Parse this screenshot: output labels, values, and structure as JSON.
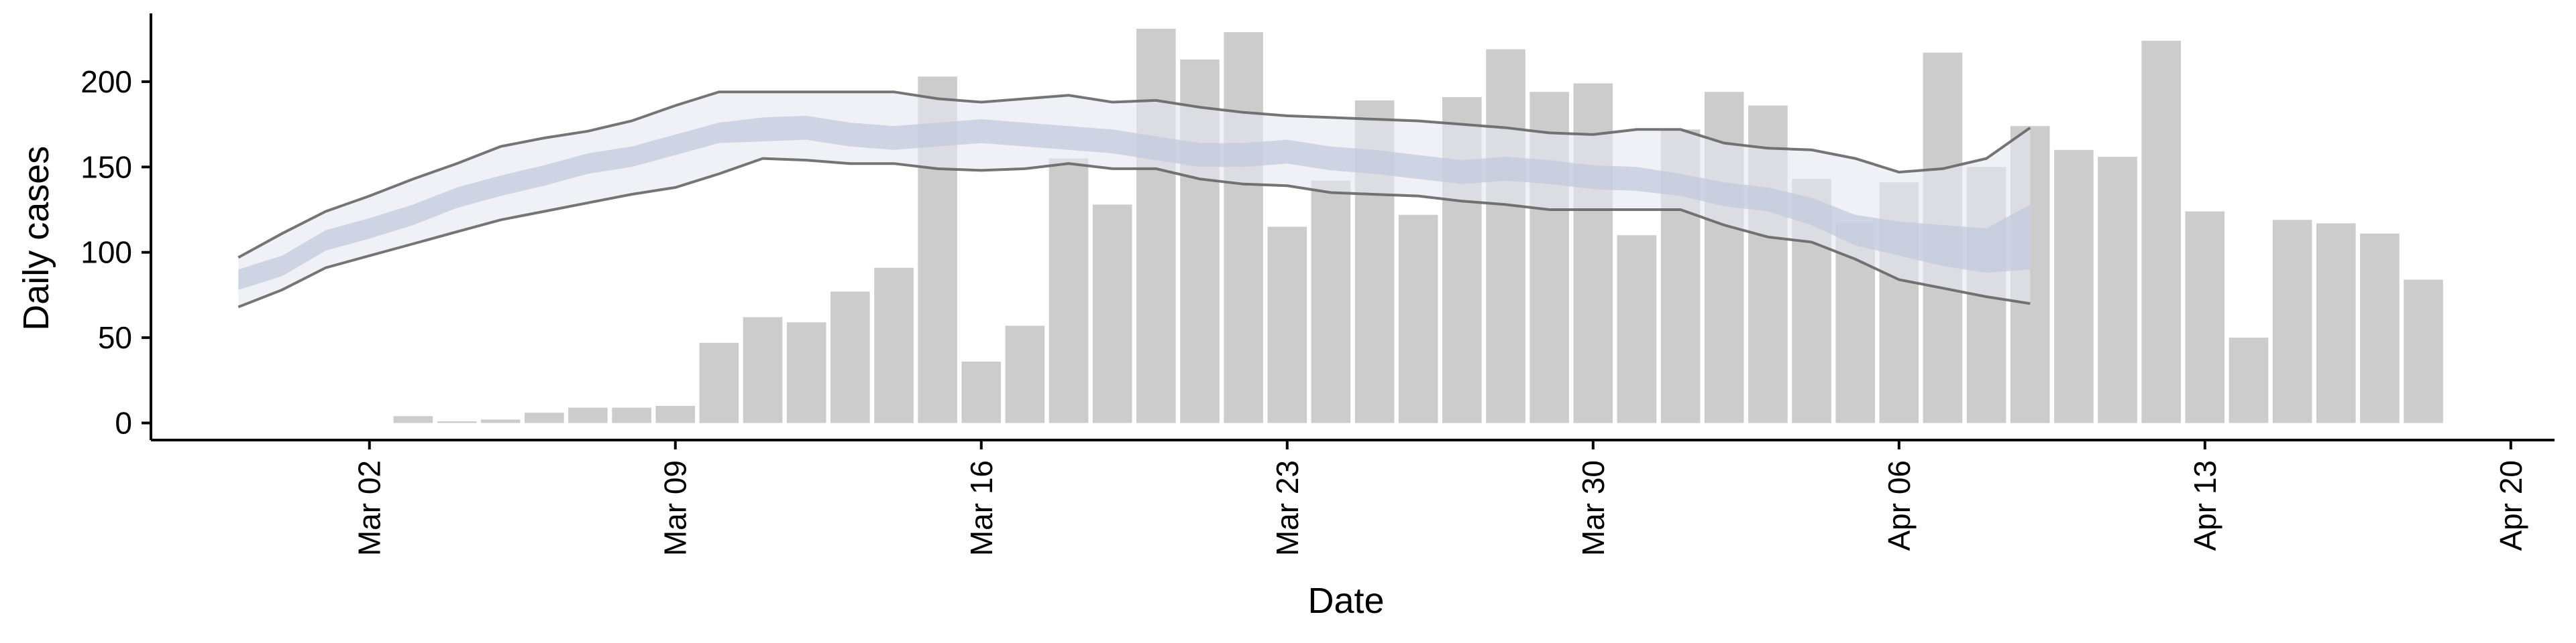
{
  "chart_data": {
    "type": "bar",
    "xlabel": "Date",
    "ylabel": "Daily cases",
    "ylim": [
      -10,
      240
    ],
    "x_range": [
      "2020-02-26",
      "2020-04-21"
    ],
    "y_ticks": [
      0,
      50,
      100,
      150,
      200
    ],
    "x_ticks": [
      {
        "date": "2020-03-02",
        "label": "Mar 02"
      },
      {
        "date": "2020-03-09",
        "label": "Mar 09"
      },
      {
        "date": "2020-03-16",
        "label": "Mar 16"
      },
      {
        "date": "2020-03-23",
        "label": "Mar 23"
      },
      {
        "date": "2020-03-30",
        "label": "Mar 30"
      },
      {
        "date": "2020-04-06",
        "label": "Apr 06"
      },
      {
        "date": "2020-04-13",
        "label": "Apr 13"
      },
      {
        "date": "2020-04-20",
        "label": "Apr 20"
      }
    ],
    "grid": false,
    "legend": "none",
    "series": [
      {
        "kind": "bars",
        "color": "#cccccc",
        "points": [
          {
            "date": "2020-03-03",
            "value": 4
          },
          {
            "date": "2020-03-04",
            "value": 1
          },
          {
            "date": "2020-03-05",
            "value": 2
          },
          {
            "date": "2020-03-06",
            "value": 6
          },
          {
            "date": "2020-03-07",
            "value": 9
          },
          {
            "date": "2020-03-08",
            "value": 9
          },
          {
            "date": "2020-03-09",
            "value": 10
          },
          {
            "date": "2020-03-10",
            "value": 47
          },
          {
            "date": "2020-03-11",
            "value": 62
          },
          {
            "date": "2020-03-12",
            "value": 59
          },
          {
            "date": "2020-03-13",
            "value": 77
          },
          {
            "date": "2020-03-14",
            "value": 91
          },
          {
            "date": "2020-03-15",
            "value": 203
          },
          {
            "date": "2020-03-16",
            "value": 36
          },
          {
            "date": "2020-03-17",
            "value": 57
          },
          {
            "date": "2020-03-18",
            "value": 155
          },
          {
            "date": "2020-03-19",
            "value": 128
          },
          {
            "date": "2020-03-20",
            "value": 231
          },
          {
            "date": "2020-03-21",
            "value": 213
          },
          {
            "date": "2020-03-22",
            "value": 229
          },
          {
            "date": "2020-03-23",
            "value": 115
          },
          {
            "date": "2020-03-24",
            "value": 142
          },
          {
            "date": "2020-03-25",
            "value": 189
          },
          {
            "date": "2020-03-26",
            "value": 122
          },
          {
            "date": "2020-03-27",
            "value": 191
          },
          {
            "date": "2020-03-28",
            "value": 219
          },
          {
            "date": "2020-03-29",
            "value": 194
          },
          {
            "date": "2020-03-30",
            "value": 199
          },
          {
            "date": "2020-03-31",
            "value": 110
          },
          {
            "date": "2020-04-01",
            "value": 172
          },
          {
            "date": "2020-04-02",
            "value": 194
          },
          {
            "date": "2020-04-03",
            "value": 186
          },
          {
            "date": "2020-04-04",
            "value": 143
          },
          {
            "date": "2020-04-05",
            "value": 117
          },
          {
            "date": "2020-04-06",
            "value": 141
          },
          {
            "date": "2020-04-07",
            "value": 217
          },
          {
            "date": "2020-04-08",
            "value": 150
          },
          {
            "date": "2020-04-09",
            "value": 174
          },
          {
            "date": "2020-04-10",
            "value": 160
          },
          {
            "date": "2020-04-11",
            "value": 156
          },
          {
            "date": "2020-04-12",
            "value": 224
          },
          {
            "date": "2020-04-13",
            "value": 124
          },
          {
            "date": "2020-04-14",
            "value": 50
          },
          {
            "date": "2020-04-15",
            "value": 119
          },
          {
            "date": "2020-04-16",
            "value": 117
          },
          {
            "date": "2020-04-17",
            "value": 111
          },
          {
            "date": "2020-04-18",
            "value": 84
          }
        ]
      },
      {
        "kind": "band-outer",
        "color": "#e6e8f1",
        "line_color": "#666666",
        "points": [
          {
            "date": "2020-02-28",
            "lower": 68,
            "upper": 97
          },
          {
            "date": "2020-02-29",
            "lower": 78,
            "upper": 111
          },
          {
            "date": "2020-03-01",
            "lower": 91,
            "upper": 124
          },
          {
            "date": "2020-03-02",
            "lower": 98,
            "upper": 133
          },
          {
            "date": "2020-03-03",
            "lower": 105,
            "upper": 143
          },
          {
            "date": "2020-03-04",
            "lower": 112,
            "upper": 152
          },
          {
            "date": "2020-03-05",
            "lower": 119,
            "upper": 162
          },
          {
            "date": "2020-03-06",
            "lower": 124,
            "upper": 167
          },
          {
            "date": "2020-03-07",
            "lower": 129,
            "upper": 171
          },
          {
            "date": "2020-03-08",
            "lower": 134,
            "upper": 177
          },
          {
            "date": "2020-03-09",
            "lower": 138,
            "upper": 186
          },
          {
            "date": "2020-03-10",
            "lower": 146,
            "upper": 194
          },
          {
            "date": "2020-03-11",
            "lower": 155,
            "upper": 194
          },
          {
            "date": "2020-03-12",
            "lower": 154,
            "upper": 194
          },
          {
            "date": "2020-03-13",
            "lower": 152,
            "upper": 194
          },
          {
            "date": "2020-03-14",
            "lower": 152,
            "upper": 194
          },
          {
            "date": "2020-03-15",
            "lower": 149,
            "upper": 190
          },
          {
            "date": "2020-03-16",
            "lower": 148,
            "upper": 188
          },
          {
            "date": "2020-03-17",
            "lower": 149,
            "upper": 190
          },
          {
            "date": "2020-03-18",
            "lower": 152,
            "upper": 192
          },
          {
            "date": "2020-03-19",
            "lower": 149,
            "upper": 188
          },
          {
            "date": "2020-03-20",
            "lower": 149,
            "upper": 189
          },
          {
            "date": "2020-03-21",
            "lower": 143,
            "upper": 185
          },
          {
            "date": "2020-03-22",
            "lower": 140,
            "upper": 182
          },
          {
            "date": "2020-03-23",
            "lower": 139,
            "upper": 180
          },
          {
            "date": "2020-03-24",
            "lower": 135,
            "upper": 179
          },
          {
            "date": "2020-03-25",
            "lower": 134,
            "upper": 178
          },
          {
            "date": "2020-03-26",
            "lower": 133,
            "upper": 177
          },
          {
            "date": "2020-03-27",
            "lower": 130,
            "upper": 175
          },
          {
            "date": "2020-03-28",
            "lower": 128,
            "upper": 173
          },
          {
            "date": "2020-03-29",
            "lower": 125,
            "upper": 170
          },
          {
            "date": "2020-03-30",
            "lower": 125,
            "upper": 169
          },
          {
            "date": "2020-03-31",
            "lower": 125,
            "upper": 172
          },
          {
            "date": "2020-04-01",
            "lower": 125,
            "upper": 172
          },
          {
            "date": "2020-04-02",
            "lower": 116,
            "upper": 164
          },
          {
            "date": "2020-04-03",
            "lower": 109,
            "upper": 161
          },
          {
            "date": "2020-04-04",
            "lower": 106,
            "upper": 160
          },
          {
            "date": "2020-04-05",
            "lower": 96,
            "upper": 155
          },
          {
            "date": "2020-04-06",
            "lower": 84,
            "upper": 147
          },
          {
            "date": "2020-04-07",
            "lower": 79,
            "upper": 149
          },
          {
            "date": "2020-04-08",
            "lower": 74,
            "upper": 155
          },
          {
            "date": "2020-04-09",
            "lower": 70,
            "upper": 173
          }
        ]
      },
      {
        "kind": "band-inner",
        "color": "#c3c9dc",
        "points": [
          {
            "date": "2020-02-28",
            "lower": 78,
            "upper": 90
          },
          {
            "date": "2020-02-29",
            "lower": 86,
            "upper": 98
          },
          {
            "date": "2020-03-01",
            "lower": 101,
            "upper": 113
          },
          {
            "date": "2020-03-02",
            "lower": 108,
            "upper": 120
          },
          {
            "date": "2020-03-03",
            "lower": 116,
            "upper": 128
          },
          {
            "date": "2020-03-04",
            "lower": 126,
            "upper": 138
          },
          {
            "date": "2020-03-05",
            "lower": 133,
            "upper": 145
          },
          {
            "date": "2020-03-06",
            "lower": 139,
            "upper": 151
          },
          {
            "date": "2020-03-07",
            "lower": 146,
            "upper": 158
          },
          {
            "date": "2020-03-08",
            "lower": 150,
            "upper": 162
          },
          {
            "date": "2020-03-09",
            "lower": 157,
            "upper": 169
          },
          {
            "date": "2020-03-10",
            "lower": 164,
            "upper": 176
          },
          {
            "date": "2020-03-11",
            "lower": 165,
            "upper": 179
          },
          {
            "date": "2020-03-12",
            "lower": 166,
            "upper": 180
          },
          {
            "date": "2020-03-13",
            "lower": 162,
            "upper": 176
          },
          {
            "date": "2020-03-14",
            "lower": 160,
            "upper": 174
          },
          {
            "date": "2020-03-15",
            "lower": 162,
            "upper": 176
          },
          {
            "date": "2020-03-16",
            "lower": 164,
            "upper": 178
          },
          {
            "date": "2020-03-17",
            "lower": 162,
            "upper": 176
          },
          {
            "date": "2020-03-18",
            "lower": 160,
            "upper": 174
          },
          {
            "date": "2020-03-19",
            "lower": 158,
            "upper": 172
          },
          {
            "date": "2020-03-20",
            "lower": 154,
            "upper": 168
          },
          {
            "date": "2020-03-21",
            "lower": 150,
            "upper": 164
          },
          {
            "date": "2020-03-22",
            "lower": 150,
            "upper": 164
          },
          {
            "date": "2020-03-23",
            "lower": 152,
            "upper": 166
          },
          {
            "date": "2020-03-24",
            "lower": 148,
            "upper": 162
          },
          {
            "date": "2020-03-25",
            "lower": 146,
            "upper": 160
          },
          {
            "date": "2020-03-26",
            "lower": 143,
            "upper": 157
          },
          {
            "date": "2020-03-27",
            "lower": 140,
            "upper": 154
          },
          {
            "date": "2020-03-28",
            "lower": 142,
            "upper": 156
          },
          {
            "date": "2020-03-29",
            "lower": 140,
            "upper": 154
          },
          {
            "date": "2020-03-30",
            "lower": 137,
            "upper": 151
          },
          {
            "date": "2020-03-31",
            "lower": 136,
            "upper": 150
          },
          {
            "date": "2020-04-01",
            "lower": 133,
            "upper": 146
          },
          {
            "date": "2020-04-02",
            "lower": 127,
            "upper": 141
          },
          {
            "date": "2020-04-03",
            "lower": 124,
            "upper": 138
          },
          {
            "date": "2020-04-04",
            "lower": 116,
            "upper": 132
          },
          {
            "date": "2020-04-05",
            "lower": 104,
            "upper": 122
          },
          {
            "date": "2020-04-06",
            "lower": 98,
            "upper": 118
          },
          {
            "date": "2020-04-07",
            "lower": 92,
            "upper": 116
          },
          {
            "date": "2020-04-08",
            "lower": 88,
            "upper": 114
          },
          {
            "date": "2020-04-09",
            "lower": 90,
            "upper": 128
          }
        ]
      }
    ]
  }
}
